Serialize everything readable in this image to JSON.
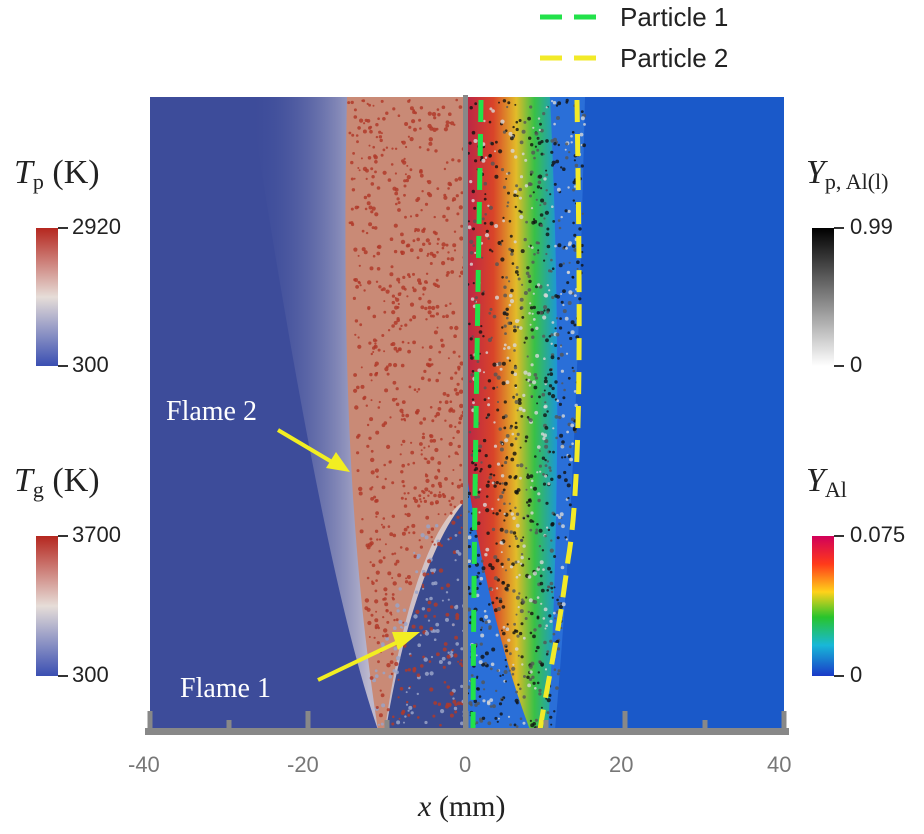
{
  "legend": {
    "items": [
      {
        "label": "Particle 1",
        "color": "#22e24a"
      },
      {
        "label": "Particle 2",
        "color": "#f2ea28"
      }
    ]
  },
  "axis": {
    "label_var": "x",
    "label_unit": " (mm)",
    "ticks": [
      "-40",
      "-20",
      "0",
      "20",
      "40"
    ]
  },
  "colorbars": {
    "tp": {
      "symbol": "T",
      "sub": "p",
      "unit": " (K)",
      "max": "2920",
      "min": "300"
    },
    "tg": {
      "symbol": "T",
      "sub": "g",
      "unit": " (K)",
      "max": "3700",
      "min": "300"
    },
    "ypal": {
      "symbol": "Y",
      "sub": "p, Al(l)",
      "max": "0.99",
      "min": "0"
    },
    "yal": {
      "symbol": "Y",
      "sub": "Al",
      "max": "0.075",
      "min": "0"
    }
  },
  "annotations": {
    "flame2": "Flame 2",
    "flame1": "Flame 1"
  },
  "colors": {
    "background_gas": "#3d4c9a",
    "right_field": "#1a59c9",
    "flame_particle": "#c98a76",
    "particle_red": "#b03a2a"
  }
}
